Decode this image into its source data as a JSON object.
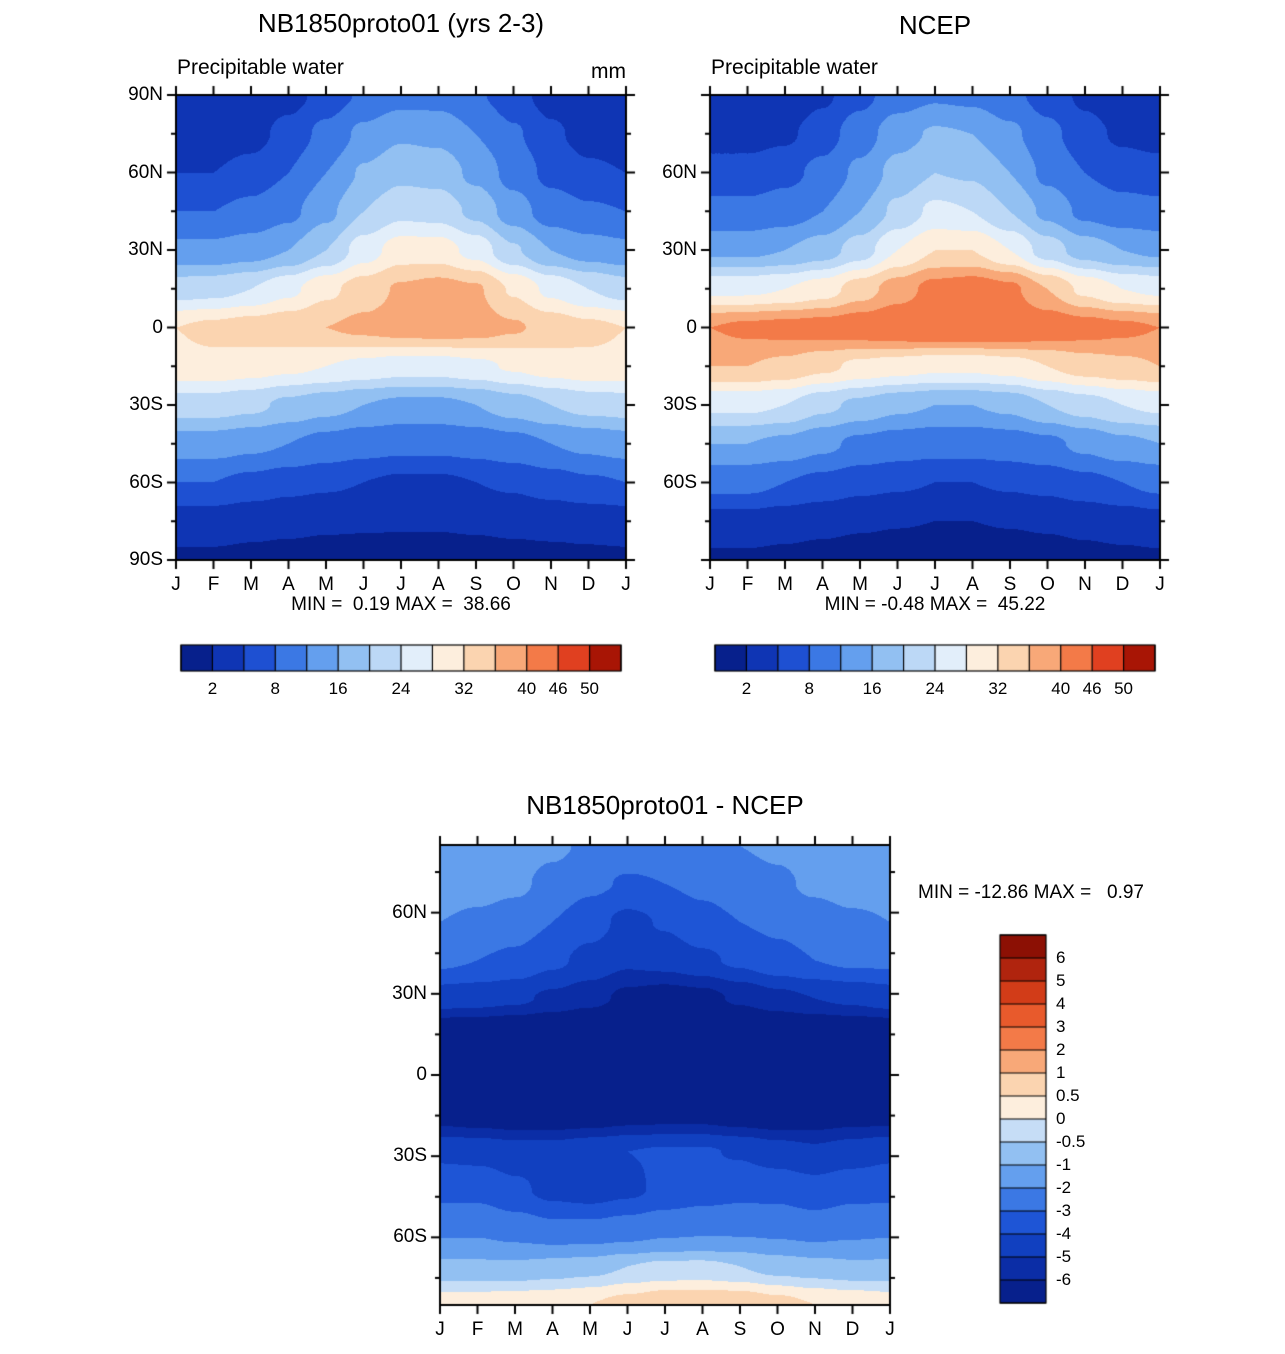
{
  "chart_data": [
    {
      "type": "heatmap",
      "title": "NB1850proto01 (yrs 2-3)",
      "subtitle_left": "Precipitable water",
      "units": "mm",
      "stats": {
        "min": 0.19,
        "max": 38.66,
        "text": "MIN =  0.19 MAX =  38.66"
      },
      "x_tick_labels": [
        "J",
        "F",
        "M",
        "A",
        "M",
        "J",
        "J",
        "A",
        "S",
        "O",
        "N",
        "D",
        "J"
      ],
      "y_tick_labels": [
        "90N",
        "60N",
        "30N",
        "0",
        "30S",
        "60S",
        "90S"
      ],
      "y_tick_lats": [
        90,
        60,
        30,
        0,
        -30,
        -60,
        -90
      ],
      "lat_range": [
        90,
        -90
      ],
      "levels": [
        2,
        5,
        8,
        12,
        16,
        20,
        24,
        28,
        32,
        36,
        40,
        46,
        50
      ],
      "colors": [
        "#07208c",
        "#0f35b4",
        "#1e50d2",
        "#3b78e4",
        "#649fee",
        "#92c0f2",
        "#bcd8f6",
        "#e2eefa",
        "#fdeedd",
        "#fbd4b0",
        "#f8a878",
        "#f37a48",
        "#e04020",
        "#a81505"
      ],
      "colorbar_tick_labels": [
        "2",
        "8",
        "16",
        "24",
        "32",
        "40",
        "46",
        "50"
      ],
      "colorbar_tick_level_indices": [
        0,
        2,
        4,
        6,
        8,
        10,
        11,
        12
      ],
      "values": [
        [
          2.5,
          2.5,
          3,
          4,
          6,
          8.5,
          10.5,
          10.5,
          8.5,
          6,
          4,
          3,
          2.5
        ],
        [
          3.5,
          3.5,
          4,
          6,
          9,
          13,
          15.5,
          15,
          12,
          8.5,
          5.5,
          4,
          3.5
        ],
        [
          5,
          5,
          6,
          8,
          12,
          16.5,
          19,
          18.5,
          15,
          10.5,
          7,
          5.5,
          5
        ],
        [
          8,
          8,
          9,
          11,
          15,
          20,
          23,
          22.5,
          19,
          14,
          10,
          8.5,
          8
        ],
        [
          13,
          13,
          14,
          16,
          20,
          26,
          30,
          30,
          26.5,
          20.5,
          16,
          14,
          13
        ],
        [
          22,
          22.5,
          24,
          27,
          31,
          34,
          36.5,
          37.5,
          36.5,
          31.5,
          27,
          24,
          22
        ],
        [
          32,
          33,
          34,
          35,
          36,
          37,
          38,
          38.5,
          38,
          36.5,
          34.5,
          33,
          32
        ],
        [
          31,
          31,
          30,
          29,
          28,
          27,
          26,
          26,
          27,
          28.5,
          30,
          31,
          31
        ],
        [
          22,
          22,
          21,
          19,
          17.5,
          16,
          15,
          15,
          16,
          18,
          20,
          21.5,
          22
        ],
        [
          14,
          14,
          13,
          12,
          10.5,
          9.5,
          9,
          9,
          9.5,
          10.5,
          12,
          13,
          14
        ],
        [
          8,
          8,
          7,
          6,
          5.5,
          5,
          4.5,
          4.5,
          5,
          5.5,
          6.5,
          7.5,
          8
        ],
        [
          3.5,
          3.5,
          3,
          2.8,
          2.5,
          2.4,
          2.3,
          2.3,
          2.5,
          2.8,
          3,
          3.2,
          3.5
        ],
        [
          1.5,
          1.5,
          1.3,
          1,
          0.8,
          0.7,
          0.7,
          0.7,
          0.8,
          1,
          1.2,
          1.4,
          1.5
        ]
      ]
    },
    {
      "type": "heatmap",
      "title": "NCEP",
      "subtitle_left": "Precipitable water",
      "units": "",
      "stats": {
        "min": -0.48,
        "max": 45.22,
        "text": "MIN = -0.48 MAX =  45.22"
      },
      "x_tick_labels": [
        "J",
        "F",
        "M",
        "A",
        "M",
        "J",
        "J",
        "A",
        "S",
        "O",
        "N",
        "D",
        "J"
      ],
      "y_tick_labels": [
        "",
        "60N",
        "30N",
        "0",
        "30S",
        "60S",
        ""
      ],
      "y_tick_lats": [
        90,
        60,
        30,
        0,
        -30,
        -60,
        -90
      ],
      "lat_range": [
        90,
        -90
      ],
      "levels": [
        2,
        5,
        8,
        12,
        16,
        20,
        24,
        28,
        32,
        36,
        40,
        46,
        50
      ],
      "colors": [
        "#07208c",
        "#0f35b4",
        "#1e50d2",
        "#3b78e4",
        "#649fee",
        "#92c0f2",
        "#bcd8f6",
        "#e2eefa",
        "#fdeedd",
        "#fbd4b0",
        "#f8a878",
        "#f37a48",
        "#e04020",
        "#a81505"
      ],
      "colorbar_tick_labels": [
        "2",
        "8",
        "16",
        "24",
        "32",
        "40",
        "46",
        "50"
      ],
      "colorbar_tick_level_indices": [
        0,
        2,
        4,
        6,
        8,
        10,
        11,
        12
      ],
      "values": [
        [
          2.5,
          2.5,
          3,
          4.5,
          7,
          10,
          11.5,
          11,
          9,
          6.5,
          4.5,
          3,
          2.5
        ],
        [
          4,
          4,
          4.5,
          6.5,
          10,
          14.5,
          16.5,
          16,
          13,
          9,
          6,
          4.5,
          4
        ],
        [
          6,
          6,
          7,
          9,
          13,
          17.5,
          20,
          19.5,
          16,
          11,
          8,
          6.5,
          6
        ],
        [
          9,
          9,
          10,
          12,
          16,
          21,
          25,
          24,
          20,
          15,
          11,
          9.5,
          9
        ],
        [
          15,
          15,
          16,
          18,
          22,
          28,
          32,
          32,
          28,
          22,
          18,
          16,
          15
        ],
        [
          27,
          27,
          28,
          30,
          34,
          38,
          41.5,
          42.5,
          41,
          36,
          31,
          28,
          27
        ],
        [
          40,
          41,
          41.5,
          42,
          43,
          44,
          45,
          45,
          44.5,
          43,
          42,
          41,
          40
        ],
        [
          36,
          36,
          35,
          33,
          31,
          30,
          29,
          29,
          30,
          32,
          34,
          35,
          36
        ],
        [
          25,
          25,
          24,
          21,
          19,
          17,
          16,
          16,
          17,
          20,
          22,
          24,
          25
        ],
        [
          16,
          16,
          15,
          13,
          11,
          10,
          9.5,
          9.5,
          10,
          11,
          13,
          15,
          16
        ],
        [
          9,
          9,
          8,
          7,
          6,
          5.5,
          5,
          5,
          5.5,
          6,
          7,
          8,
          9
        ],
        [
          4,
          4,
          3.5,
          3,
          2.5,
          2.2,
          2,
          2,
          2.2,
          2.5,
          3,
          3.5,
          4
        ],
        [
          1.5,
          1.5,
          1.2,
          0.8,
          0.4,
          0.1,
          0,
          0,
          0.2,
          0.5,
          1,
          1.3,
          1.5
        ]
      ]
    },
    {
      "type": "heatmap",
      "title": "NB1850proto01 - NCEP",
      "subtitle_left": "",
      "units": "",
      "stats": {
        "min": -12.86,
        "max": 0.97,
        "text": "MIN = -12.86 MAX =   0.97"
      },
      "x_tick_labels": [
        "J",
        "F",
        "M",
        "A",
        "M",
        "J",
        "J",
        "A",
        "S",
        "O",
        "N",
        "D",
        "J"
      ],
      "y_tick_labels": [
        "60N",
        "30N",
        "0",
        "30S",
        "60S"
      ],
      "y_tick_lats": [
        60,
        30,
        0,
        -30,
        -60
      ],
      "lat_range": [
        85,
        -85
      ],
      "levels": [
        -6,
        -5,
        -4,
        -3,
        -2,
        -1,
        -0.5,
        0,
        0.5,
        1,
        2,
        3,
        4,
        5,
        6
      ],
      "colors": [
        "#07208c",
        "#0b2da6",
        "#1140c0",
        "#1e55d6",
        "#3b78e4",
        "#649fee",
        "#92c0f2",
        "#c6ddf6",
        "#fdeedd",
        "#fbd4b0",
        "#f8a878",
        "#f37a48",
        "#e85a2c",
        "#d23c18",
        "#b0240e",
        "#8c1004"
      ],
      "colorbar_tick_labels": [
        "6",
        "5",
        "4",
        "3",
        "2",
        "1",
        "0.5",
        "0",
        "-0.5",
        "-1",
        "-2",
        "-3",
        "-4",
        "-5",
        "-6"
      ],
      "colorbar_tick_level_indices": [],
      "values": [
        [
          -1.2,
          -1.2,
          -1.5,
          -1.8,
          -2.2,
          -2.5,
          -2.5,
          -2.2,
          -2.0,
          -1.8,
          -1.5,
          -1.2,
          -1.2
        ],
        [
          -1.5,
          -1.6,
          -1.8,
          -2.3,
          -2.8,
          -3.1,
          -3.0,
          -2.8,
          -2.5,
          -2.2,
          -1.8,
          -1.5,
          -1.5
        ],
        [
          -2.0,
          -2.2,
          -2.5,
          -3.0,
          -3.6,
          -4.3,
          -3.9,
          -3.3,
          -3.0,
          -2.8,
          -2.5,
          -2.2,
          -2.0
        ],
        [
          -2.8,
          -3.0,
          -3.2,
          -3.8,
          -4.3,
          -4.8,
          -4.6,
          -4.2,
          -3.8,
          -3.3,
          -3.0,
          -2.8,
          -2.8
        ],
        [
          -4.5,
          -4.6,
          -4.8,
          -5.2,
          -5.6,
          -6.3,
          -6.6,
          -6.4,
          -5.8,
          -5.3,
          -5.0,
          -4.8,
          -4.5
        ],
        [
          -7.5,
          -7.6,
          -7.8,
          -8.1,
          -8.6,
          -9.2,
          -9.6,
          -9.2,
          -8.6,
          -8.1,
          -7.8,
          -7.6,
          -7.5
        ],
        [
          -9.0,
          -9.5,
          -10.0,
          -10.6,
          -11.2,
          -12.1,
          -12.9,
          -12.1,
          -11.1,
          -10.1,
          -9.5,
          -9.0,
          -9.0
        ],
        [
          -6.6,
          -6.8,
          -7.0,
          -7.0,
          -6.9,
          -6.6,
          -6.5,
          -6.5,
          -6.8,
          -7.0,
          -6.8,
          -6.6,
          -6.6
        ],
        [
          -4.2,
          -4.3,
          -4.5,
          -4.5,
          -4.2,
          -4.0,
          -3.9,
          -3.9,
          -4.1,
          -4.5,
          -4.8,
          -4.5,
          -4.2
        ],
        [
          -3.3,
          -3.3,
          -3.8,
          -4.3,
          -4.5,
          -4.2,
          -3.8,
          -3.5,
          -3.3,
          -3.3,
          -3.6,
          -3.3,
          -3.3
        ],
        [
          -2.2,
          -2.2,
          -2.5,
          -2.8,
          -2.8,
          -2.6,
          -2.3,
          -2.2,
          -2.2,
          -2.3,
          -2.5,
          -2.3,
          -2.2
        ],
        [
          -0.9,
          -0.9,
          -0.9,
          -0.8,
          -0.7,
          -0.5,
          -0.4,
          -0.4,
          -0.5,
          -0.7,
          -0.8,
          -0.9,
          -0.9
        ],
        [
          0.3,
          0.3,
          0.35,
          0.4,
          0.5,
          0.7,
          0.9,
          0.95,
          0.9,
          0.7,
          0.5,
          0.4,
          0.3
        ]
      ]
    }
  ]
}
